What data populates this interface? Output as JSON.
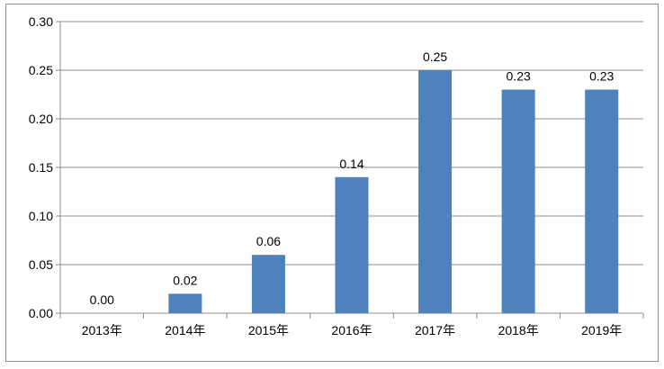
{
  "chart_data": {
    "type": "bar",
    "categories": [
      "2013年",
      "2014年",
      "2015年",
      "2016年",
      "2017年",
      "2018年",
      "2019年"
    ],
    "values": [
      0.0,
      0.02,
      0.06,
      0.14,
      0.25,
      0.23,
      0.23
    ],
    "data_labels": [
      "0.00",
      "0.02",
      "0.06",
      "0.14",
      "0.25",
      "0.23",
      "0.23"
    ],
    "y_ticks": [
      "0.00",
      "0.05",
      "0.10",
      "0.15",
      "0.20",
      "0.25",
      "0.30"
    ],
    "ylim": [
      0,
      0.3
    ],
    "grid": true,
    "bar_color": "#4f81bd",
    "grid_color": "#8c8c8c"
  }
}
